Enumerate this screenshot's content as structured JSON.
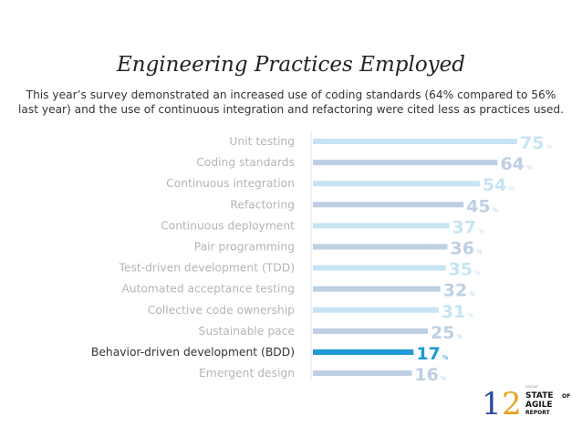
{
  "title": "Engineering Practices Employed",
  "subtitle": "This year’s survey demonstrated an increased use of coding standards (64% compared to 56% last year) and the use of continuous integration and refactoring were cited less as practices used.",
  "chart_data": {
    "type": "bar",
    "orientation": "horizontal",
    "categories": [
      "Unit testing",
      "Coding standards",
      "Continuous integration",
      "Refactoring",
      "Continuous deployment",
      "Pair programming",
      "Test-driven development (TDD)",
      "Automated acceptance testing",
      "Collective code ownership",
      "Sustainable pace",
      "Behavior-driven development (BDD)",
      "Emergent design"
    ],
    "values": [
      75,
      64,
      54,
      45,
      37,
      36,
      35,
      32,
      31,
      25,
      17,
      16
    ],
    "unit": "%",
    "highlight": "Behavior-driven development (BDD)",
    "colors": {
      "light": "#c6e4f4",
      "alt": "#bdd0e3",
      "highlight": "#1f98d6",
      "label": "#b5b5b5",
      "highlight_label": "#333333"
    },
    "grid": false
  },
  "logo": {
    "number": "12",
    "small": "annual",
    "line1": "STATE",
    "line1b": "OF",
    "line2": "AGILE",
    "line3": "REPORT"
  }
}
